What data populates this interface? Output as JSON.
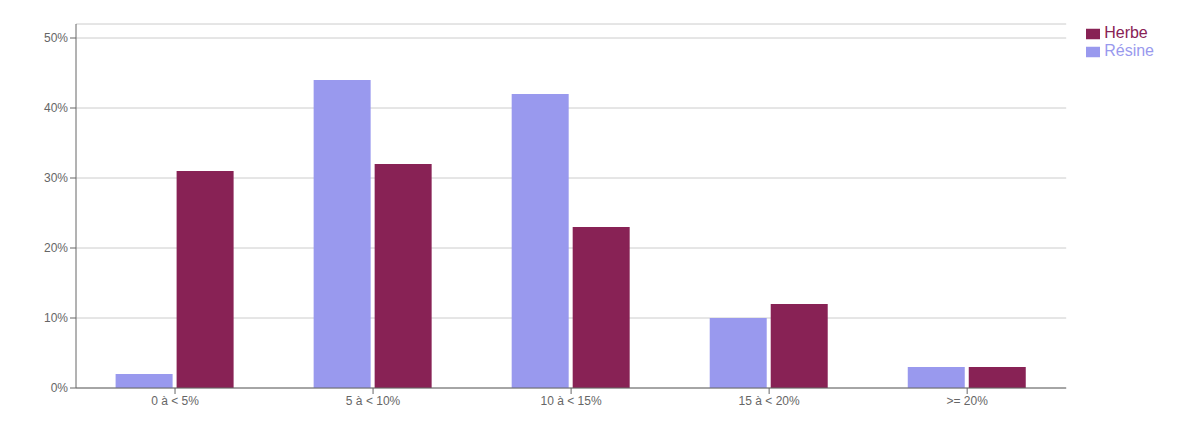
{
  "chart_data": {
    "type": "bar",
    "categories": [
      "0 à < 5%",
      "5 à < 10%",
      "10 à < 15%",
      "15 à < 20%",
      ">= 20%"
    ],
    "series": [
      {
        "name": "Résine",
        "color": "#9999EE",
        "values": [
          0.02,
          0.44,
          0.42,
          0.1,
          0.03
        ]
      },
      {
        "name": "Herbe",
        "color": "#882255",
        "values": [
          0.31,
          0.32,
          0.23,
          0.12,
          0.03
        ]
      }
    ],
    "ylim": [
      0,
      0.52
    ],
    "yticks": [
      {
        "value": 0.0,
        "label": "0%"
      },
      {
        "value": 0.1,
        "label": "10%"
      },
      {
        "value": 0.2,
        "label": "20%"
      },
      {
        "value": 0.3,
        "label": "30%"
      },
      {
        "value": 0.4,
        "label": "40%"
      },
      {
        "value": 0.5,
        "label": "50%"
      }
    ],
    "grid": true,
    "legend": "right"
  }
}
